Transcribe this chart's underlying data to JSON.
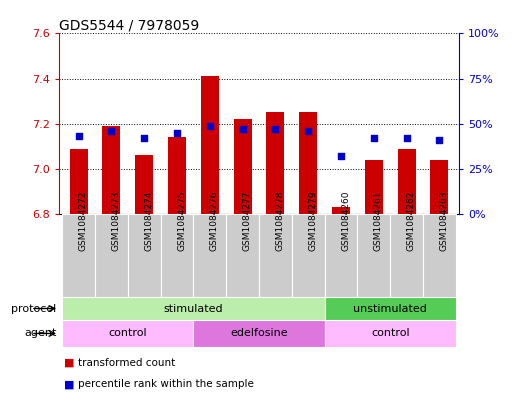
{
  "title": "GDS5544 / 7978059",
  "samples": [
    "GSM1084272",
    "GSM1084273",
    "GSM1084274",
    "GSM1084275",
    "GSM1084276",
    "GSM1084277",
    "GSM1084278",
    "GSM1084279",
    "GSM1084260",
    "GSM1084261",
    "GSM1084262",
    "GSM1084263"
  ],
  "red_values": [
    7.09,
    7.19,
    7.06,
    7.14,
    7.41,
    7.22,
    7.25,
    7.25,
    6.83,
    7.04,
    7.09,
    7.04
  ],
  "blue_values": [
    43,
    46,
    42,
    45,
    49,
    47,
    47,
    46,
    32,
    42,
    42,
    41
  ],
  "y_min": 6.8,
  "y_max": 7.6,
  "y_ticks": [
    6.8,
    7.0,
    7.2,
    7.4,
    7.6
  ],
  "right_ticks": [
    0,
    25,
    50,
    75,
    100
  ],
  "right_tick_labels": [
    "0%",
    "25%",
    "50%",
    "75%",
    "100%"
  ],
  "bar_color": "#cc0000",
  "dot_color": "#0000cc",
  "bar_bottom": 6.8,
  "protocol_groups": [
    {
      "label": "stimulated",
      "start": 0,
      "end": 8,
      "color": "#bbeeaa"
    },
    {
      "label": "unstimulated",
      "start": 8,
      "end": 12,
      "color": "#55cc55"
    }
  ],
  "agent_groups": [
    {
      "label": "control",
      "start": 0,
      "end": 4,
      "color": "#ffbbff"
    },
    {
      "label": "edelfosine",
      "start": 4,
      "end": 8,
      "color": "#dd77dd"
    },
    {
      "label": "control",
      "start": 8,
      "end": 12,
      "color": "#ffbbff"
    }
  ],
  "legend_items": [
    {
      "label": "transformed count",
      "color": "#cc0000"
    },
    {
      "label": "percentile rank within the sample",
      "color": "#0000cc"
    }
  ],
  "title_fontsize": 10,
  "tick_label_color_left": "#cc0000",
  "tick_label_color_right": "#0000cc",
  "background_color": "#ffffff",
  "bar_width": 0.55,
  "sample_box_color": "#cccccc"
}
